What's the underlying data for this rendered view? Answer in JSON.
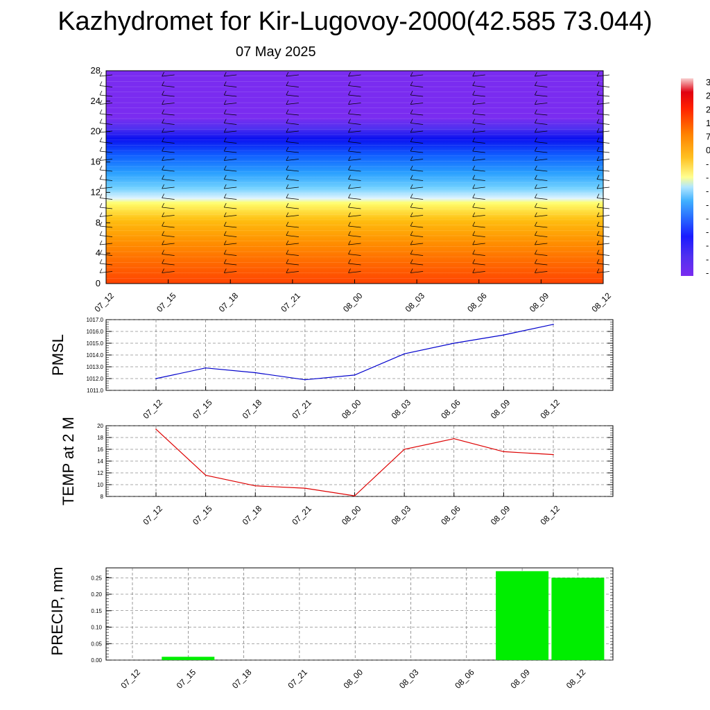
{
  "page": {
    "title": "Kazhydromet for Kir-Lugovoy-2000(42.585 73.044)",
    "subtitle": "07 May 2025"
  },
  "chart_data": [
    {
      "type": "heatmap",
      "name": "vertical-profile",
      "x_ticks": [
        "07_12",
        "07_15",
        "07_18",
        "07_21",
        "08_00",
        "08_03",
        "08_06",
        "08_09",
        "08_12"
      ],
      "y_ticks": [
        "0",
        "4",
        "8",
        "12",
        "16",
        "20",
        "24",
        "28"
      ],
      "ylim": [
        0,
        28
      ],
      "colorbar_labels": [
        "3",
        "2",
        "2",
        "1",
        "7",
        "0",
        "-",
        "-",
        "-",
        "-",
        "-",
        "-",
        "-",
        "-",
        "-"
      ],
      "colors": {
        "low": "#7a2cf0",
        "mid": "#ffff88",
        "high": "#ff4a00"
      }
    },
    {
      "type": "line",
      "ylabel": "PMSL",
      "categories": [
        "07_12",
        "07_15",
        "07_18",
        "07_21",
        "08_00",
        "08_03",
        "08_06",
        "08_09",
        "08_12"
      ],
      "values": [
        1012.0,
        1012.9,
        1012.5,
        1011.9,
        1012.3,
        1014.1,
        1015.0,
        1015.7,
        1016.6
      ],
      "ylim": [
        1011.0,
        1017.0
      ],
      "y_ticks": [
        "1011.0",
        "1012.0",
        "1013.0",
        "1014.0",
        "1015.0",
        "1016.0",
        "1017.0"
      ],
      "color": "#0000cc"
    },
    {
      "type": "line",
      "ylabel": "TEMP at 2 M",
      "categories": [
        "07_12",
        "07_15",
        "07_18",
        "07_21",
        "08_00",
        "08_03",
        "08_06",
        "08_09",
        "08_12"
      ],
      "values": [
        19.4,
        11.6,
        9.8,
        9.4,
        8.1,
        16.0,
        17.8,
        15.6,
        15.1
      ],
      "ylim": [
        8,
        20
      ],
      "y_ticks": [
        "8",
        "10",
        "12",
        "14",
        "16",
        "18",
        "20"
      ],
      "color": "#dd0000"
    },
    {
      "type": "bar",
      "ylabel": "PRECIP, mm",
      "categories": [
        "07_12",
        "07_15",
        "07_18",
        "07_21",
        "08_00",
        "08_03",
        "08_06",
        "08_09",
        "08_12"
      ],
      "values": [
        0,
        0.01,
        0,
        0,
        0,
        0,
        0,
        0.27,
        0.25
      ],
      "ylim": [
        0,
        0.28
      ],
      "y_ticks": [
        "0.00",
        "0.05",
        "0.10",
        "0.15",
        "0.20",
        "0.25"
      ],
      "color": "#00ee00"
    }
  ]
}
